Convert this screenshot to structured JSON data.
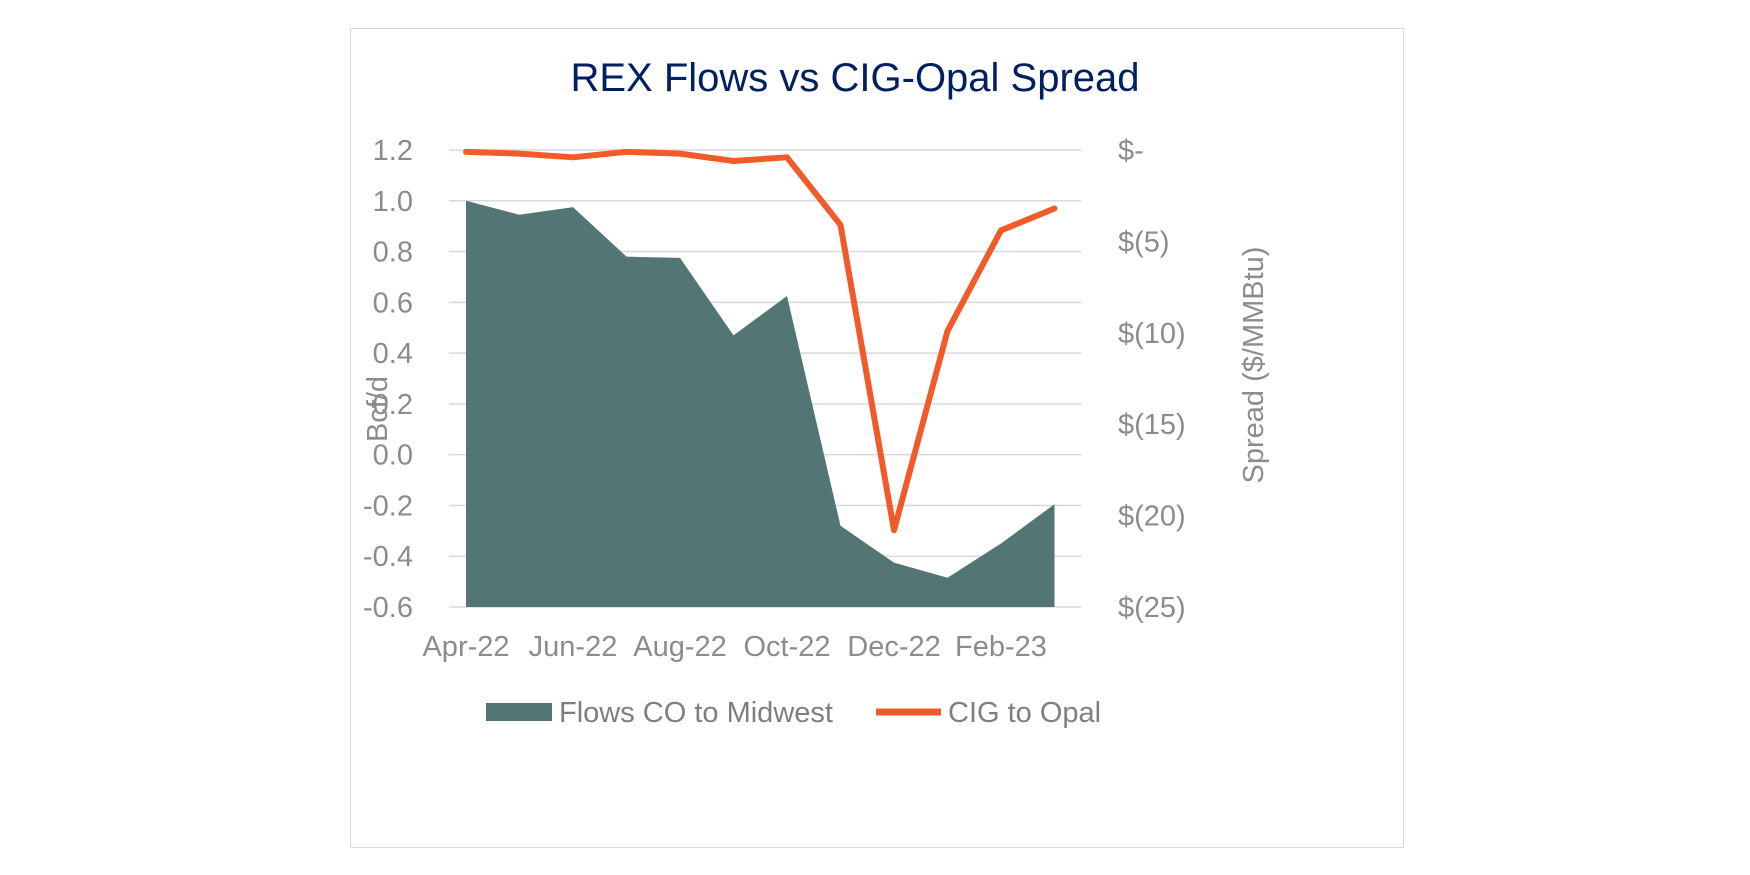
{
  "chart_data": {
    "type": "area",
    "title": "REX Flows vs CIG-Opal Spread",
    "x": [
      "Apr-22",
      "May-22",
      "Jun-22",
      "Jul-22",
      "Aug-22",
      "Sep-22",
      "Oct-22",
      "Nov-22",
      "Dec-22",
      "Jan-23",
      "Feb-23",
      "Mar-23"
    ],
    "x_tick_labels": [
      "Apr-22",
      "Jun-22",
      "Aug-22",
      "Oct-22",
      "Dec-22",
      "Feb-23"
    ],
    "ylabel": "Bcf/d",
    "ylim": [
      -0.6,
      1.2
    ],
    "y_ticks": [
      1.2,
      1.0,
      0.8,
      0.6,
      0.4,
      0.2,
      0.0,
      -0.2,
      -0.4,
      -0.6
    ],
    "y_tick_labels": [
      "1.2",
      "1.0",
      "0.8",
      "0.6",
      "0.4",
      "0.2",
      "0.0",
      "-0.2",
      "-0.4",
      "-0.6"
    ],
    "y2label": "Spread ($/MMBtu)",
    "y2lim": [
      -25,
      0
    ],
    "y2_ticks": [
      0,
      -5,
      -10,
      -15,
      -20,
      -25
    ],
    "y2_tick_labels": [
      "$-",
      "$(5)",
      "$(10)",
      "$(15)",
      "$(20)",
      "$(25)"
    ],
    "grid": true,
    "legend_position": "bottom",
    "series": [
      {
        "name": "Flows CO to Midwest",
        "type": "area",
        "axis": "left",
        "color": "#537675",
        "values": [
          1.0,
          0.945,
          0.975,
          0.78,
          0.775,
          0.47,
          0.625,
          -0.28,
          -0.425,
          -0.485,
          -0.35,
          -0.195
        ]
      },
      {
        "name": "CIG to Opal",
        "type": "line",
        "axis": "right",
        "color": "#f15a29",
        "values": [
          -0.1,
          -0.2,
          -0.4,
          -0.1,
          -0.2,
          -0.6,
          -0.4,
          -4.1,
          -20.8,
          -9.9,
          -4.4,
          -3.2
        ]
      }
    ]
  }
}
